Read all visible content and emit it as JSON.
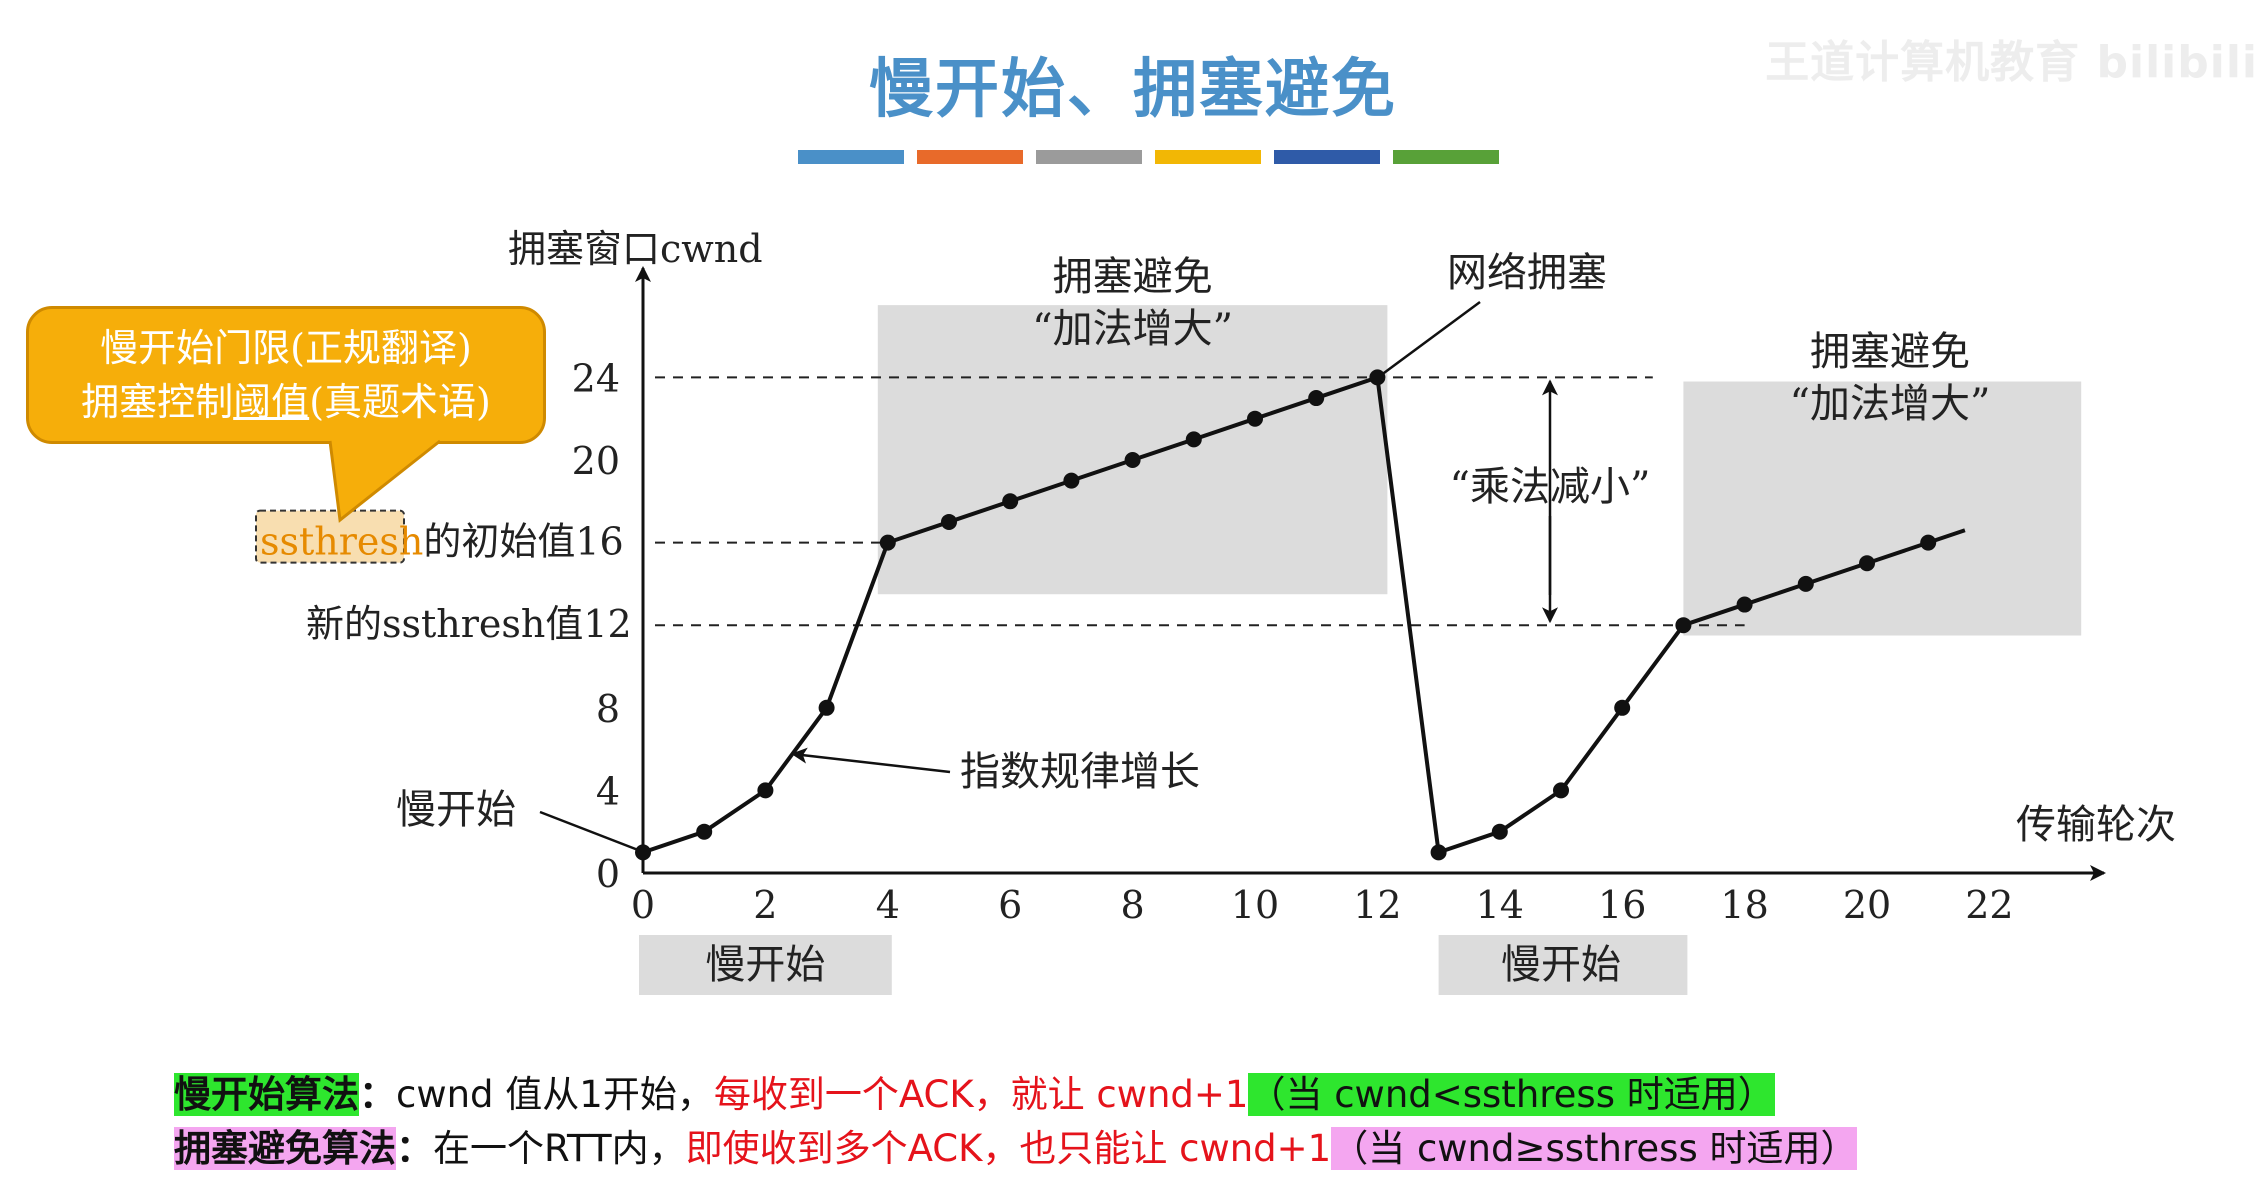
{
  "slide": {
    "title": "慢开始、拥塞避免",
    "color_strip": [
      "#4a90c8",
      "#e86a2a",
      "#9b9b9b",
      "#f2b705",
      "#2f5ba8",
      "#58a138"
    ],
    "watermark": "王道计算机教育 bilibili"
  },
  "callout": {
    "line1": "慢开始门限(正规翻译)",
    "line2_prefix": "拥塞控制",
    "line2_underlined": "阈值",
    "line2_suffix": "(真题术语)",
    "fill_color": "#f6ae0a"
  },
  "chart_data": {
    "type": "line",
    "xlabel": "传输轮次",
    "ylabel": "拥塞窗口cwnd",
    "xlim": [
      0,
      23
    ],
    "ylim": [
      0,
      27
    ],
    "x_ticks": [
      0,
      2,
      4,
      6,
      8,
      10,
      12,
      14,
      16,
      18,
      20,
      22
    ],
    "y_ticks": [
      0,
      4,
      8,
      12,
      16,
      20,
      24
    ],
    "points": [
      [
        0,
        1
      ],
      [
        1,
        2
      ],
      [
        2,
        4
      ],
      [
        3,
        8
      ],
      [
        4,
        16
      ],
      [
        5,
        17
      ],
      [
        6,
        18
      ],
      [
        7,
        19
      ],
      [
        8,
        20
      ],
      [
        9,
        21
      ],
      [
        10,
        22
      ],
      [
        11,
        23
      ],
      [
        12,
        24
      ],
      [
        13,
        1
      ],
      [
        14,
        2
      ],
      [
        15,
        4
      ],
      [
        16,
        8
      ],
      [
        17,
        12
      ],
      [
        18,
        13
      ],
      [
        19,
        14
      ],
      [
        20,
        15
      ],
      [
        21,
        16
      ]
    ],
    "line_end": [
      21.6,
      16.6
    ],
    "reference_lines": [
      {
        "y": 24,
        "x_end": 16.5
      },
      {
        "y": 16,
        "x_end": 4
      },
      {
        "y": 12,
        "x_end": 18
      }
    ],
    "ssthresh_label": {
      "highlight": "ssthresh",
      "rest": "的初始值16"
    },
    "new_ssthresh_label": "新的ssthresh值12",
    "shaded_regions": [
      {
        "x": [
          4,
          12
        ],
        "y": [
          13.5,
          27.5
        ],
        "line1": "拥塞避免",
        "line2": "“加法增大”"
      },
      {
        "x": [
          17,
          23.5
        ],
        "y": [
          11.5,
          23.8
        ],
        "line1": "拥塞避免",
        "line2": "“加法增大”"
      },
      {
        "x": [
          0,
          4
        ],
        "label": "慢开始"
      },
      {
        "x": [
          13,
          17
        ],
        "label": "慢开始"
      }
    ],
    "annotations": {
      "congestion": "网络拥塞",
      "multiplicative": "“乘法减小”",
      "exponential": "指数规律增长",
      "slow_start": "慢开始"
    }
  },
  "algorithms": {
    "slow_start": {
      "name": "慢开始算法",
      "colon": "：",
      "text1": "cwnd 值从1开始，",
      "red": "每收到一个ACK，就让 cwnd+1",
      "cond": "（当 cwnd<ssthress 时适用）"
    },
    "congestion_avoid": {
      "name": "拥塞避免算法",
      "colon": "：",
      "text1": "在一个RTT内，",
      "red": "即使收到多个ACK，也只能让 cwnd+1",
      "cond": "（当 cwnd≥ssthress 时适用）"
    }
  }
}
